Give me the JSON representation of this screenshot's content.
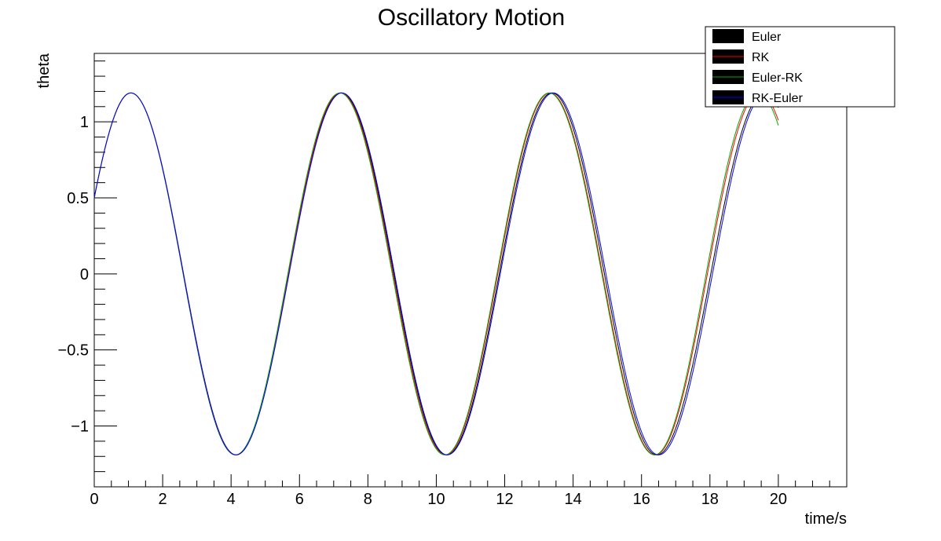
{
  "chart_data": {
    "type": "line",
    "title": "Oscillatory Motion",
    "xlabel": "time/s",
    "ylabel": "theta",
    "xlim": [
      0,
      22
    ],
    "ylim": [
      -1.4,
      1.45
    ],
    "grid": false,
    "legend_position": "top-right",
    "x_ticks": [
      "0",
      "2",
      "4",
      "6",
      "8",
      "10",
      "12",
      "14",
      "16",
      "18",
      "20"
    ],
    "y_ticks": [
      "−1",
      "−0.5",
      "0",
      "0.5",
      "1"
    ],
    "y_tick_values": [
      -1,
      -0.5,
      0,
      0.5,
      1
    ],
    "x_tick_values": [
      0,
      2,
      4,
      6,
      8,
      10,
      12,
      14,
      16,
      18,
      20
    ],
    "series": [
      {
        "name": "Euler",
        "color": "#000000",
        "amplitude": 1.19,
        "period": 6.2,
        "theta0": 0.5,
        "t_end": 20.0,
        "peak_times": [
          1.07,
          7.22,
          13.38,
          19.6
        ],
        "trough_times": [
          4.13,
          10.3,
          16.45
        ]
      },
      {
        "name": "RK",
        "color": "#ff0000",
        "amplitude": 1.19,
        "period": 6.2,
        "theta0": 0.5,
        "t_end": 20.0,
        "peak_times": [
          1.07,
          7.2,
          13.32,
          19.45
        ],
        "trough_times": [
          4.15,
          10.27,
          16.4
        ]
      },
      {
        "name": "Euler-RK",
        "color": "#00aa00",
        "amplitude": 1.19,
        "period": 6.2,
        "theta0": 0.5,
        "t_end": 20.0,
        "peak_times": [
          1.07,
          7.18,
          13.3,
          19.4
        ],
        "trough_times": [
          4.14,
          10.25,
          16.38
        ]
      },
      {
        "name": "RK-Euler",
        "color": "#0000ff",
        "amplitude": 1.19,
        "period": 6.2,
        "theta0": 0.5,
        "t_end": 20.0,
        "peak_times": [
          1.07,
          7.24,
          13.42,
          19.65
        ],
        "trough_times": [
          4.15,
          10.32,
          16.5
        ]
      }
    ]
  }
}
